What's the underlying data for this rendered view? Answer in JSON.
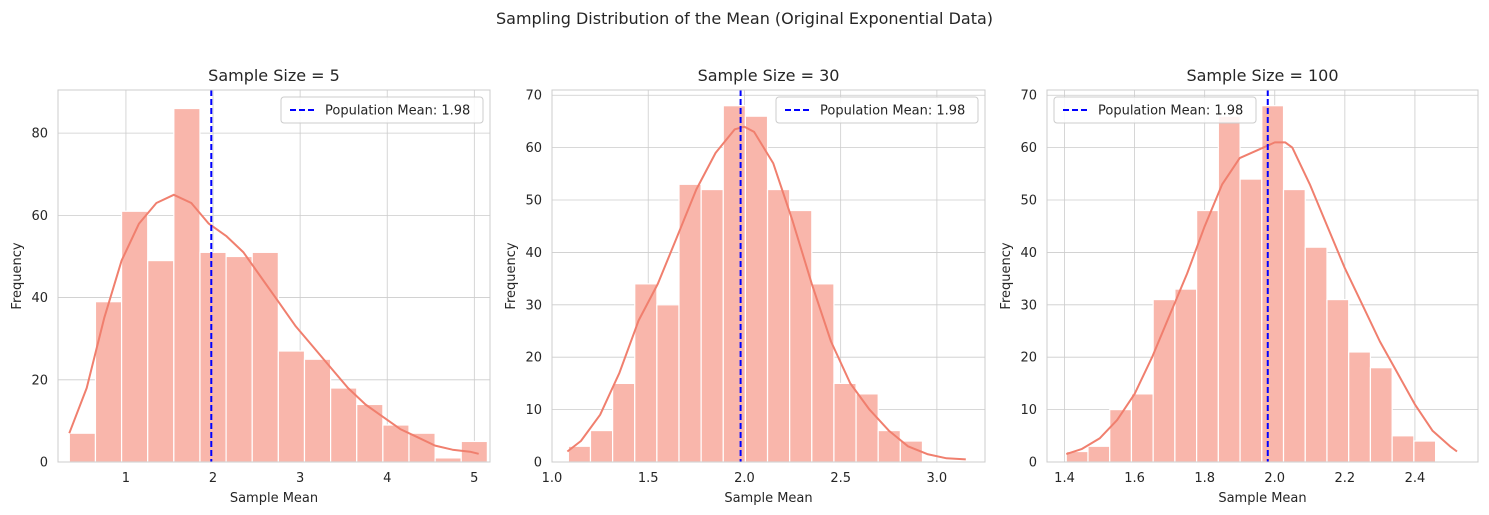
{
  "figure": {
    "title": "Sampling Distribution of the Mean (Original Exponential Data)"
  },
  "style": {
    "bar_fill": "#f9b6ab",
    "bar_edge": "#ffffff",
    "kde_color": "#f07f6e",
    "mean_line_color": "#0000ff",
    "grid_color": "#cccccc",
    "text_color": "#262626",
    "axes_edge": "#cccccc"
  },
  "chart_data": [
    {
      "type": "bar",
      "title": "Sample Size = 5",
      "xlabel": "Sample Mean",
      "ylabel": "Frequency",
      "xlim": [
        0.22,
        5.18
      ],
      "ylim": [
        0,
        90.5
      ],
      "xticks": [
        1,
        2,
        3,
        4,
        5
      ],
      "yticks": [
        0,
        20,
        40,
        60,
        80
      ],
      "bin_edges": [
        0.35,
        0.65,
        0.95,
        1.25,
        1.55,
        1.85,
        2.15,
        2.45,
        2.75,
        3.05,
        3.35,
        3.65,
        3.95,
        4.25,
        4.55,
        4.85,
        5.15
      ],
      "counts": [
        7,
        39,
        61,
        49,
        86,
        51,
        50,
        51,
        27,
        25,
        18,
        14,
        9,
        7,
        1,
        5
      ],
      "kde": {
        "x": [
          0.35,
          0.55,
          0.75,
          0.95,
          1.15,
          1.35,
          1.55,
          1.75,
          1.95,
          2.15,
          2.35,
          2.55,
          2.75,
          2.95,
          3.15,
          3.35,
          3.55,
          3.75,
          3.95,
          4.15,
          4.35,
          4.55,
          4.75,
          4.95,
          5.05
        ],
        "y": [
          7,
          18,
          35,
          49,
          58,
          63,
          65,
          63,
          58,
          55,
          51,
          45,
          39,
          33,
          28,
          23,
          18,
          14,
          11,
          8,
          6,
          4,
          3,
          2.5,
          2
        ]
      },
      "mean_line": {
        "x": 1.98,
        "label": "Population Mean: 1.98"
      },
      "legend_loc": "upper right"
    },
    {
      "type": "bar",
      "title": "Sample Size = 30",
      "xlabel": "Sample Mean",
      "ylabel": "Frequency",
      "xlim": [
        1.0,
        3.25
      ],
      "ylim": [
        0,
        71
      ],
      "xticks": [
        1.0,
        1.5,
        2.0,
        2.5,
        3.0
      ],
      "yticks": [
        0,
        10,
        20,
        30,
        40,
        50,
        60,
        70
      ],
      "bin_edges": [
        1.085,
        1.2,
        1.315,
        1.43,
        1.545,
        1.66,
        1.775,
        1.89,
        2.005,
        2.12,
        2.235,
        2.35,
        2.465,
        2.58,
        2.695,
        2.81,
        2.925
      ],
      "counts": [
        3,
        6,
        15,
        34,
        30,
        53,
        52,
        68,
        66,
        52,
        48,
        34,
        15,
        13,
        6,
        4
      ],
      "kde": {
        "x": [
          1.08,
          1.15,
          1.25,
          1.35,
          1.45,
          1.55,
          1.65,
          1.75,
          1.85,
          1.95,
          2.0,
          2.05,
          2.15,
          2.25,
          2.35,
          2.45,
          2.55,
          2.65,
          2.75,
          2.85,
          2.95,
          3.05,
          3.15
        ],
        "y": [
          2,
          4,
          9,
          17,
          27,
          34,
          43,
          52,
          59,
          63.5,
          64,
          63,
          57,
          46,
          34,
          23,
          15,
          10,
          6,
          3,
          1.5,
          0.7,
          0.5
        ]
      },
      "mean_line": {
        "x": 1.98,
        "label": "Population Mean: 1.98"
      },
      "legend_loc": "upper right"
    },
    {
      "type": "bar",
      "title": "Sample Size = 100",
      "xlabel": "Sample Mean",
      "ylabel": "Frequency",
      "xlim": [
        1.35,
        2.58
      ],
      "ylim": [
        0,
        71
      ],
      "xticks": [
        1.4,
        1.6,
        1.8,
        2.0,
        2.2,
        2.4
      ],
      "yticks": [
        0,
        10,
        20,
        30,
        40,
        50,
        60,
        70
      ],
      "bin_edges": [
        1.405,
        1.467,
        1.529,
        1.591,
        1.653,
        1.715,
        1.777,
        1.839,
        1.901,
        1.963,
        2.025,
        2.087,
        2.149,
        2.211,
        2.273,
        2.335,
        2.397,
        2.459,
        2.521
      ],
      "counts": [
        2,
        3,
        10,
        13,
        31,
        33,
        48,
        66,
        54,
        68,
        52,
        41,
        31,
        21,
        18,
        5,
        4,
        0
      ],
      "kde": {
        "x": [
          1.405,
          1.45,
          1.5,
          1.55,
          1.6,
          1.65,
          1.7,
          1.75,
          1.8,
          1.85,
          1.9,
          1.95,
          2.0,
          2.03,
          2.05,
          2.1,
          2.15,
          2.2,
          2.25,
          2.3,
          2.35,
          2.4,
          2.45,
          2.5,
          2.52
        ],
        "y": [
          1.5,
          2.5,
          4.5,
          8,
          13,
          20,
          28,
          36,
          45,
          53,
          58,
          59.5,
          61,
          61,
          60,
          53,
          45,
          37,
          30,
          23,
          17,
          11,
          6,
          3,
          2
        ]
      },
      "mean_line": {
        "x": 1.98,
        "label": "Population Mean: 1.98"
      },
      "legend_loc": "upper left"
    }
  ]
}
